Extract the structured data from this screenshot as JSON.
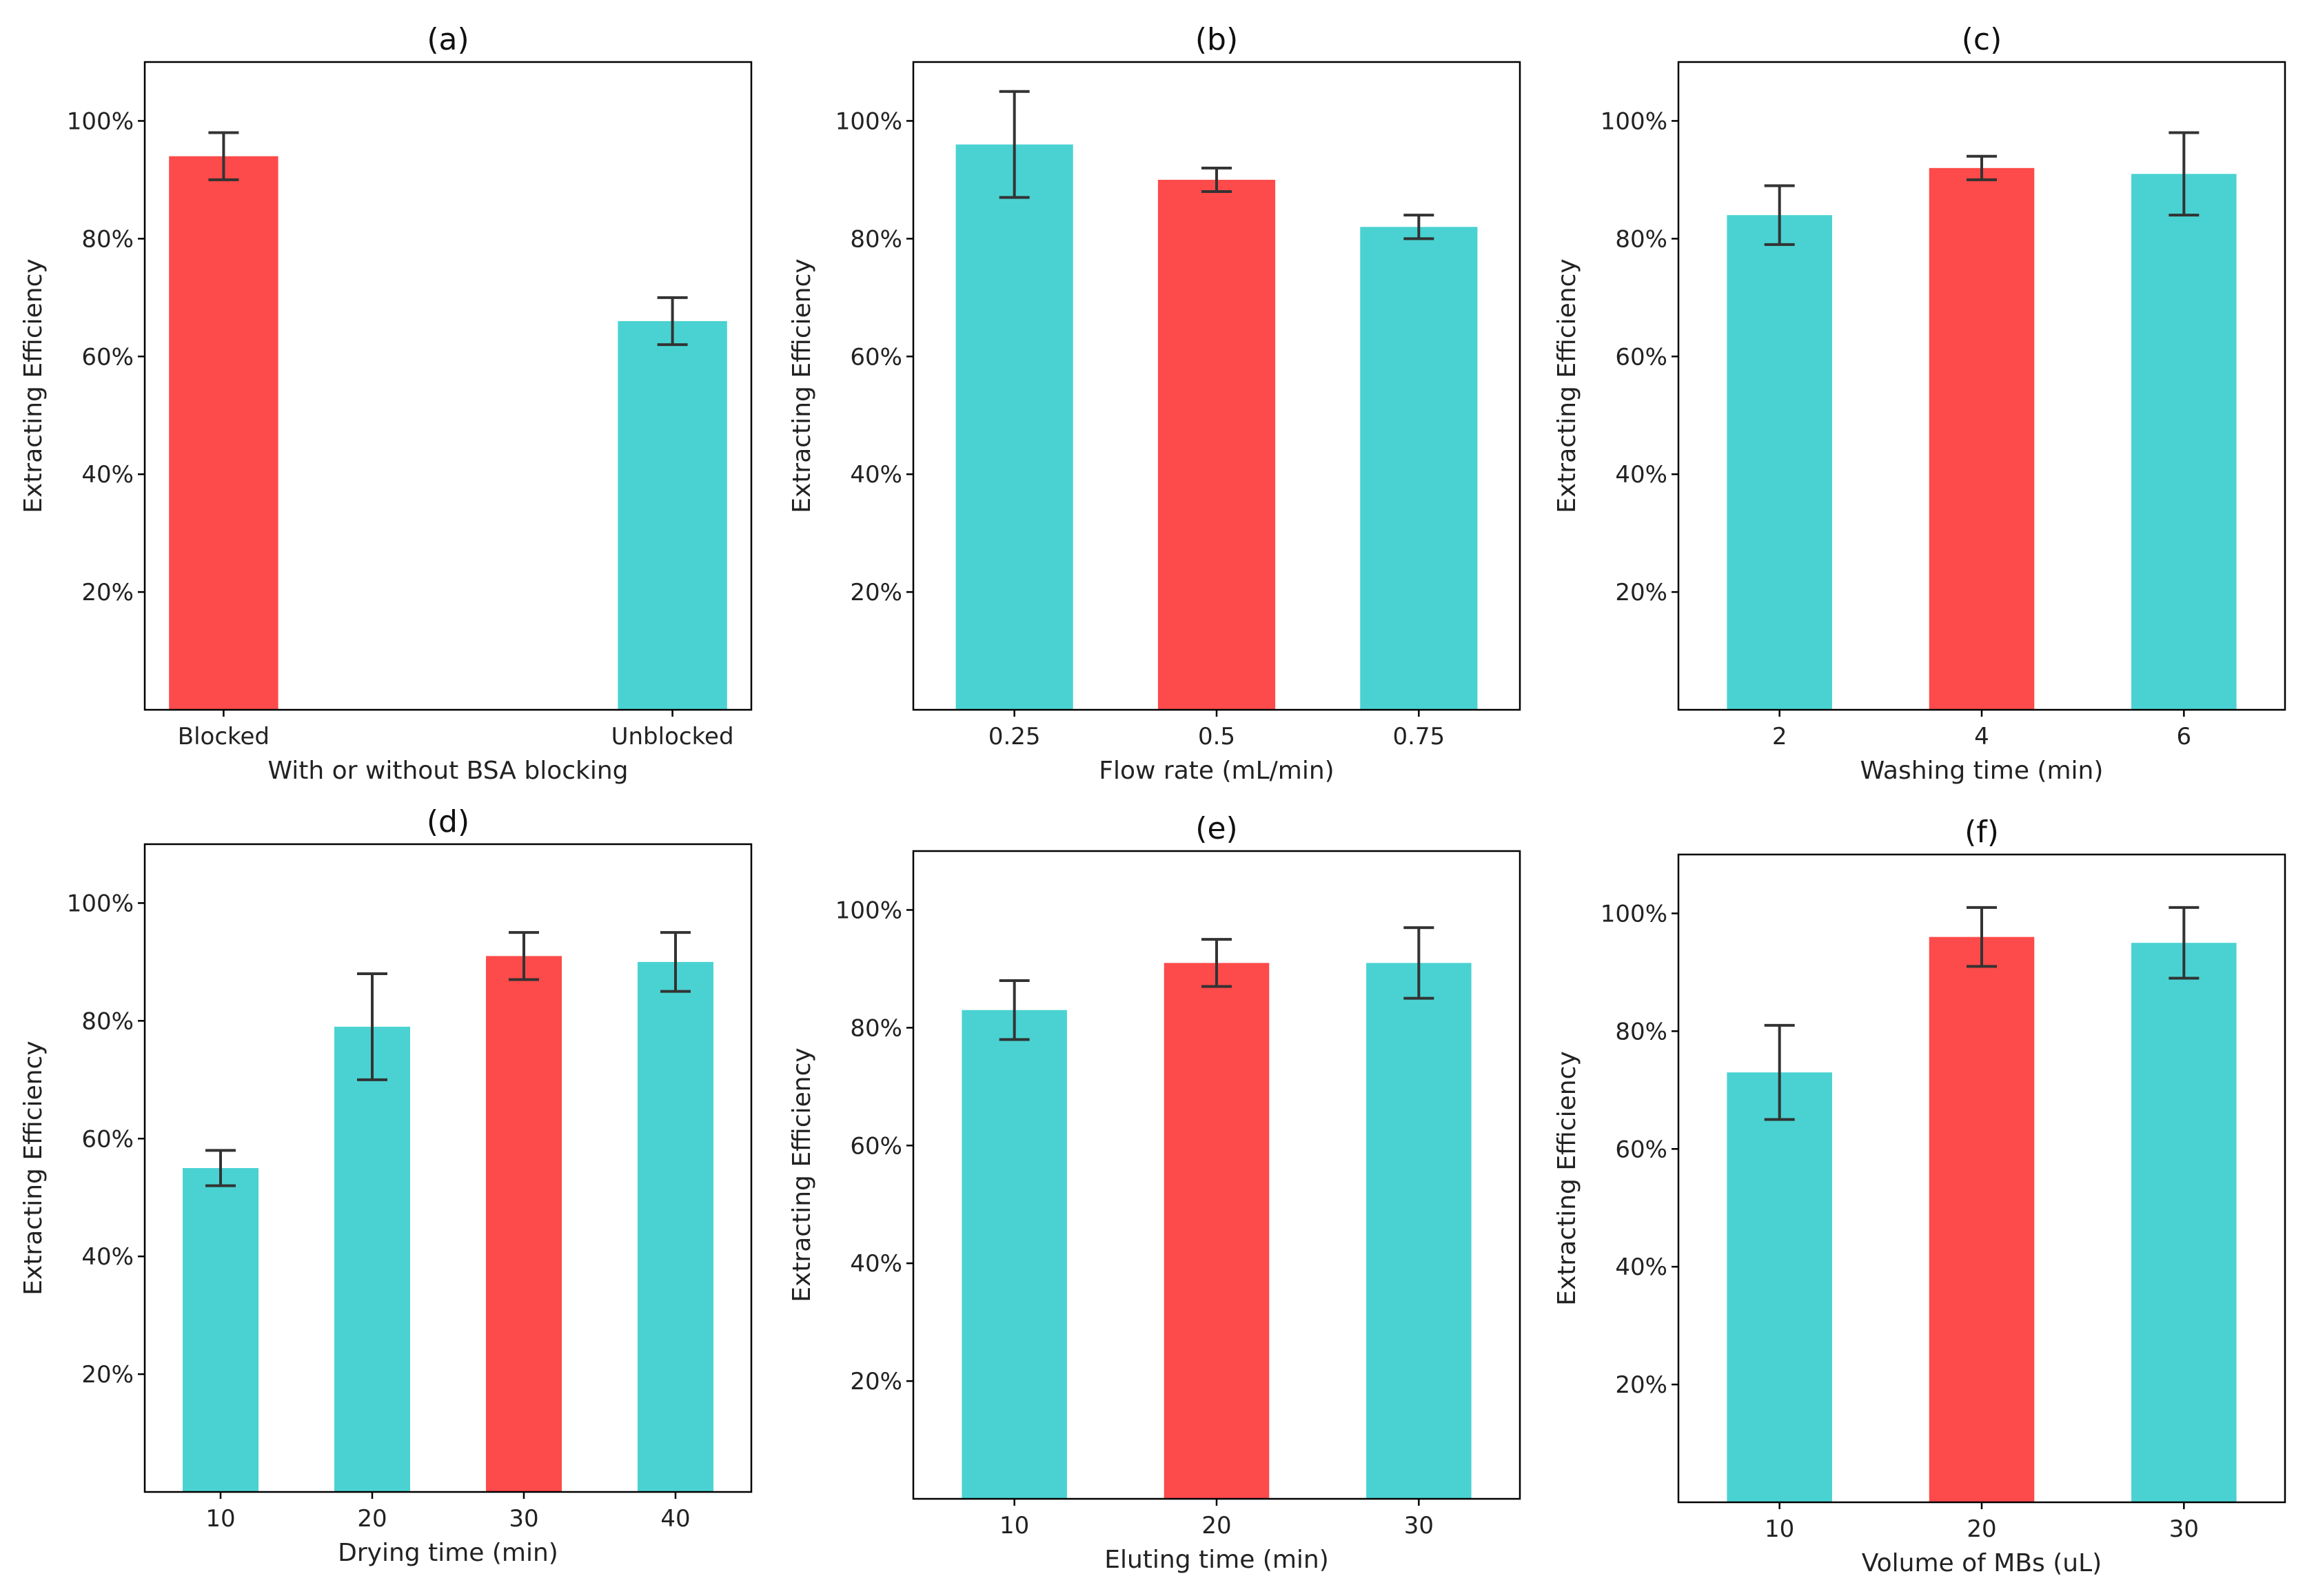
{
  "colors": {
    "highlight": "#fd4a4a",
    "default": "#4ad2d2"
  },
  "chart_data": [
    {
      "type": "bar",
      "title": "(a)",
      "xlabel": "With or without BSA blocking",
      "ylabel": "Extracting Efficiency",
      "categories": [
        "Blocked",
        "Unblocked"
      ],
      "values": [
        0.94,
        0.66
      ],
      "errors": [
        0.04,
        0.04
      ],
      "highlight_index": 0,
      "ylim": [
        0,
        1.1
      ],
      "yticks": [
        0.2,
        0.4,
        0.6,
        0.8,
        1.0
      ],
      "ytick_labels": [
        "20%",
        "40%",
        "60%",
        "80%",
        "100%"
      ]
    },
    {
      "type": "bar",
      "title": "(b)",
      "xlabel": "Flow rate (mL/min)",
      "ylabel": "Extracting Efficiency",
      "categories": [
        "0.25",
        "0.5",
        "0.75"
      ],
      "values": [
        0.96,
        0.9,
        0.82
      ],
      "errors": [
        0.09,
        0.02,
        0.02
      ],
      "highlight_index": 1,
      "ylim": [
        0,
        1.1
      ],
      "yticks": [
        0.2,
        0.4,
        0.6,
        0.8,
        1.0
      ],
      "ytick_labels": [
        "20%",
        "40%",
        "60%",
        "80%",
        "100%"
      ]
    },
    {
      "type": "bar",
      "title": "(c)",
      "xlabel": "Washing time (min)",
      "ylabel": "Extracting Efficiency",
      "categories": [
        "2",
        "4",
        "6"
      ],
      "values": [
        0.84,
        0.92,
        0.91
      ],
      "errors": [
        0.05,
        0.02,
        0.07
      ],
      "highlight_index": 1,
      "ylim": [
        0,
        1.1
      ],
      "yticks": [
        0.2,
        0.4,
        0.6,
        0.8,
        1.0
      ],
      "ytick_labels": [
        "20%",
        "40%",
        "60%",
        "80%",
        "100%"
      ]
    },
    {
      "type": "bar",
      "title": "(d)",
      "xlabel": "Drying time (min)",
      "ylabel": "Extracting Efficiency",
      "categories": [
        "10",
        "20",
        "30",
        "40"
      ],
      "values": [
        0.55,
        0.79,
        0.91,
        0.9
      ],
      "errors": [
        0.03,
        0.09,
        0.04,
        0.05
      ],
      "highlight_index": 2,
      "ylim": [
        0,
        1.1
      ],
      "yticks": [
        0.2,
        0.4,
        0.6,
        0.8,
        1.0
      ],
      "ytick_labels": [
        "20%",
        "40%",
        "60%",
        "80%",
        "100%"
      ]
    },
    {
      "type": "bar",
      "title": "(e)",
      "xlabel": "Eluting time (min)",
      "ylabel": "Extracting Efficiency",
      "categories": [
        "10",
        "20",
        "30"
      ],
      "values": [
        0.83,
        0.91,
        0.91
      ],
      "errors": [
        0.05,
        0.04,
        0.06
      ],
      "highlight_index": 1,
      "ylim": [
        0,
        1.1
      ],
      "yticks": [
        0.2,
        0.4,
        0.6,
        0.8,
        1.0
      ],
      "ytick_labels": [
        "20%",
        "40%",
        "60%",
        "80%",
        "100%"
      ]
    },
    {
      "type": "bar",
      "title": "(f)",
      "xlabel": "Volume of MBs (uL)",
      "ylabel": "Extracting Efficiency",
      "categories": [
        "10",
        "20",
        "30"
      ],
      "values": [
        0.73,
        0.96,
        0.95
      ],
      "errors": [
        0.08,
        0.05,
        0.06
      ],
      "highlight_index": 1,
      "ylim": [
        0,
        1.1
      ],
      "yticks": [
        0.2,
        0.4,
        0.6,
        0.8,
        1.0
      ],
      "ytick_labels": [
        "20%",
        "40%",
        "60%",
        "80%",
        "100%"
      ]
    }
  ]
}
